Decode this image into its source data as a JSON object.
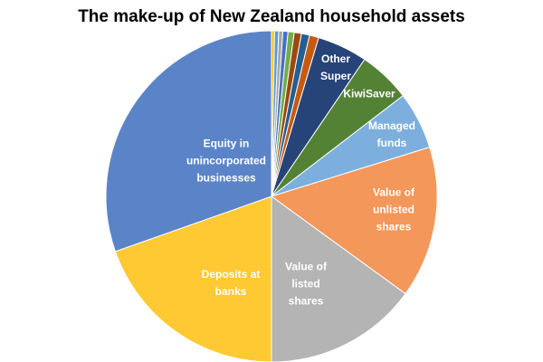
{
  "chart_data": {
    "type": "pie",
    "title": "The make-up of New Zealand household assets",
    "categories": [
      null,
      null,
      null,
      null,
      null,
      null,
      null,
      null,
      "Other Super",
      "KiwiSaver",
      "Managed funds",
      "Value of unlisted shares",
      "Value of listed shares",
      "Deposits at banks",
      "Equity in unincorporated businesses"
    ],
    "values": [
      0.3,
      0.4,
      0.4,
      0.5,
      0.6,
      0.7,
      0.8,
      0.9,
      4.9,
      5.1,
      5.6,
      14.8,
      15.0,
      19.6,
      30.4
    ],
    "colors": [
      "#ffc000",
      "#5b9bd5",
      "#a5a5a5",
      "#4472c4",
      "#43682b",
      "#9e480e",
      "#255e91",
      "#c55a11",
      "#997300",
      "#264478",
      "#2e5d1f",
      "#74a9dd",
      "#f4975a",
      "#b4b4b4",
      "#ffc933",
      "#6a8fd3"
    ]
  }
}
